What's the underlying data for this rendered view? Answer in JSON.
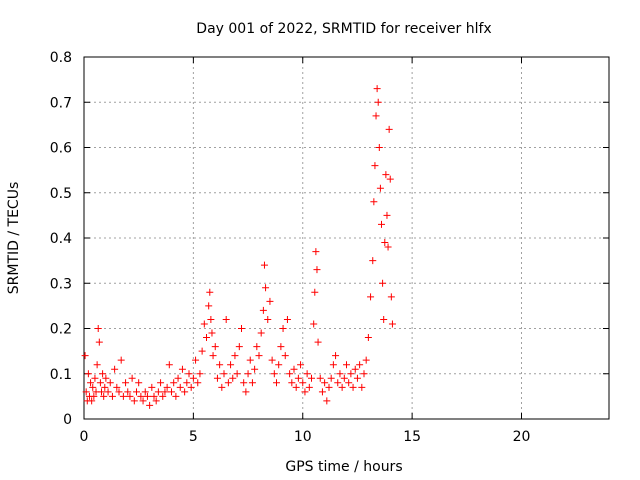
{
  "chart_data": {
    "type": "scatter",
    "title": "Day 001 of 2022, SRMTID for receiver hlfx",
    "xlabel": "GPS time / hours",
    "ylabel": "SRMTID / TECUs",
    "xlim": [
      0,
      24
    ],
    "ylim": [
      0,
      0.8
    ],
    "xticks": [
      0,
      5,
      10,
      15,
      20
    ],
    "yticks": [
      0,
      0.1,
      0.2,
      0.3,
      0.4,
      0.5,
      0.6,
      0.7,
      0.8
    ],
    "xtick_labels": [
      "0",
      "5",
      "10",
      "15",
      "20"
    ],
    "ytick_labels": [
      "0",
      "0.1",
      "0.2",
      "0.3",
      "0.4",
      "0.5",
      "0.6",
      "0.7",
      "0.8"
    ],
    "grid": true,
    "marker": "plus",
    "marker_color": "#ff0000",
    "series": [
      {
        "name": "SRMTID",
        "points": [
          [
            0.05,
            0.14
          ],
          [
            0.1,
            0.06
          ],
          [
            0.15,
            0.04
          ],
          [
            0.2,
            0.1
          ],
          [
            0.25,
            0.05
          ],
          [
            0.3,
            0.08
          ],
          [
            0.35,
            0.04
          ],
          [
            0.4,
            0.07
          ],
          [
            0.45,
            0.05
          ],
          [
            0.5,
            0.09
          ],
          [
            0.55,
            0.06
          ],
          [
            0.6,
            0.12
          ],
          [
            0.65,
            0.2
          ],
          [
            0.7,
            0.17
          ],
          [
            0.75,
            0.08
          ],
          [
            0.8,
            0.06
          ],
          [
            0.85,
            0.1
          ],
          [
            0.9,
            0.05
          ],
          [
            0.95,
            0.07
          ],
          [
            1.0,
            0.09
          ],
          [
            1.1,
            0.06
          ],
          [
            1.2,
            0.08
          ],
          [
            1.3,
            0.05
          ],
          [
            1.4,
            0.11
          ],
          [
            1.5,
            0.07
          ],
          [
            1.6,
            0.06
          ],
          [
            1.7,
            0.13
          ],
          [
            1.8,
            0.05
          ],
          [
            1.9,
            0.08
          ],
          [
            2.0,
            0.06
          ],
          [
            2.1,
            0.05
          ],
          [
            2.2,
            0.09
          ],
          [
            2.3,
            0.04
          ],
          [
            2.4,
            0.06
          ],
          [
            2.5,
            0.08
          ],
          [
            2.6,
            0.05
          ],
          [
            2.7,
            0.04
          ],
          [
            2.8,
            0.06
          ],
          [
            2.9,
            0.05
          ],
          [
            3.0,
            0.03
          ],
          [
            3.1,
            0.07
          ],
          [
            3.2,
            0.05
          ],
          [
            3.3,
            0.04
          ],
          [
            3.4,
            0.06
          ],
          [
            3.5,
            0.08
          ],
          [
            3.6,
            0.05
          ],
          [
            3.7,
            0.06
          ],
          [
            3.8,
            0.07
          ],
          [
            3.9,
            0.12
          ],
          [
            4.0,
            0.06
          ],
          [
            4.1,
            0.08
          ],
          [
            4.2,
            0.05
          ],
          [
            4.3,
            0.09
          ],
          [
            4.4,
            0.07
          ],
          [
            4.5,
            0.11
          ],
          [
            4.6,
            0.06
          ],
          [
            4.7,
            0.08
          ],
          [
            4.8,
            0.1
          ],
          [
            4.9,
            0.07
          ],
          [
            5.0,
            0.09
          ],
          [
            5.1,
            0.13
          ],
          [
            5.2,
            0.08
          ],
          [
            5.3,
            0.1
          ],
          [
            5.4,
            0.15
          ],
          [
            5.5,
            0.21
          ],
          [
            5.6,
            0.18
          ],
          [
            5.7,
            0.25
          ],
          [
            5.75,
            0.28
          ],
          [
            5.8,
            0.22
          ],
          [
            5.85,
            0.19
          ],
          [
            5.9,
            0.14
          ],
          [
            6.0,
            0.16
          ],
          [
            6.1,
            0.09
          ],
          [
            6.2,
            0.12
          ],
          [
            6.3,
            0.07
          ],
          [
            6.4,
            0.1
          ],
          [
            6.5,
            0.22
          ],
          [
            6.6,
            0.08
          ],
          [
            6.7,
            0.12
          ],
          [
            6.8,
            0.09
          ],
          [
            6.9,
            0.14
          ],
          [
            7.0,
            0.1
          ],
          [
            7.1,
            0.16
          ],
          [
            7.2,
            0.2
          ],
          [
            7.3,
            0.08
          ],
          [
            7.4,
            0.06
          ],
          [
            7.5,
            0.1
          ],
          [
            7.6,
            0.13
          ],
          [
            7.7,
            0.08
          ],
          [
            7.8,
            0.11
          ],
          [
            7.9,
            0.16
          ],
          [
            8.0,
            0.14
          ],
          [
            8.1,
            0.19
          ],
          [
            8.2,
            0.24
          ],
          [
            8.25,
            0.34
          ],
          [
            8.3,
            0.29
          ],
          [
            8.4,
            0.22
          ],
          [
            8.5,
            0.26
          ],
          [
            8.6,
            0.13
          ],
          [
            8.7,
            0.1
          ],
          [
            8.8,
            0.08
          ],
          [
            8.9,
            0.12
          ],
          [
            9.0,
            0.16
          ],
          [
            9.1,
            0.2
          ],
          [
            9.2,
            0.14
          ],
          [
            9.3,
            0.22
          ],
          [
            9.4,
            0.1
          ],
          [
            9.5,
            0.08
          ],
          [
            9.6,
            0.11
          ],
          [
            9.7,
            0.07
          ],
          [
            9.8,
            0.09
          ],
          [
            9.9,
            0.12
          ],
          [
            10.0,
            0.08
          ],
          [
            10.1,
            0.06
          ],
          [
            10.2,
            0.1
          ],
          [
            10.3,
            0.07
          ],
          [
            10.4,
            0.09
          ],
          [
            10.5,
            0.21
          ],
          [
            10.55,
            0.28
          ],
          [
            10.6,
            0.37
          ],
          [
            10.65,
            0.33
          ],
          [
            10.7,
            0.17
          ],
          [
            10.8,
            0.09
          ],
          [
            10.9,
            0.06
          ],
          [
            11.0,
            0.08
          ],
          [
            11.1,
            0.04
          ],
          [
            11.2,
            0.07
          ],
          [
            11.3,
            0.09
          ],
          [
            11.4,
            0.12
          ],
          [
            11.5,
            0.14
          ],
          [
            11.6,
            0.08
          ],
          [
            11.7,
            0.1
          ],
          [
            11.8,
            0.07
          ],
          [
            11.9,
            0.09
          ],
          [
            12.0,
            0.12
          ],
          [
            12.1,
            0.08
          ],
          [
            12.2,
            0.1
          ],
          [
            12.3,
            0.07
          ],
          [
            12.4,
            0.11
          ],
          [
            12.5,
            0.09
          ],
          [
            12.6,
            0.12
          ],
          [
            12.7,
            0.07
          ],
          [
            12.8,
            0.1
          ],
          [
            12.9,
            0.13
          ],
          [
            13.0,
            0.18
          ],
          [
            13.1,
            0.27
          ],
          [
            13.2,
            0.35
          ],
          [
            13.25,
            0.48
          ],
          [
            13.3,
            0.56
          ],
          [
            13.35,
            0.67
          ],
          [
            13.4,
            0.73
          ],
          [
            13.45,
            0.7
          ],
          [
            13.5,
            0.6
          ],
          [
            13.55,
            0.51
          ],
          [
            13.6,
            0.43
          ],
          [
            13.65,
            0.3
          ],
          [
            13.7,
            0.22
          ],
          [
            13.75,
            0.39
          ],
          [
            13.8,
            0.54
          ],
          [
            13.85,
            0.45
          ],
          [
            13.9,
            0.38
          ],
          [
            13.95,
            0.64
          ],
          [
            14.0,
            0.53
          ],
          [
            14.05,
            0.27
          ],
          [
            14.1,
            0.21
          ]
        ]
      }
    ]
  }
}
